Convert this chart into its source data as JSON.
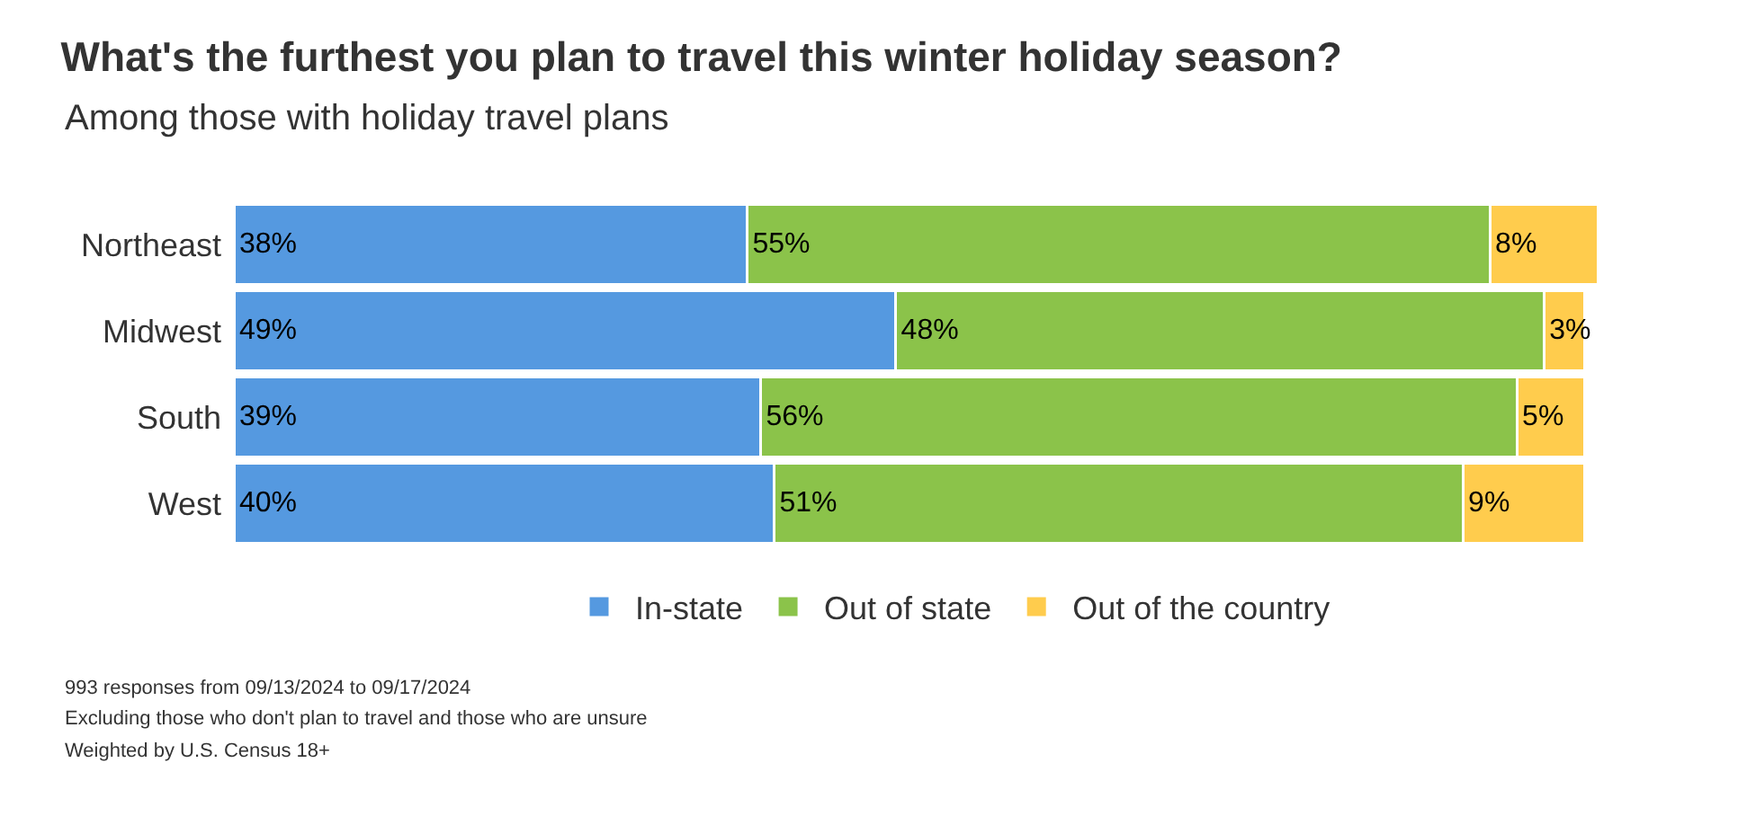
{
  "chart_data": {
    "type": "bar",
    "orientation": "horizontal",
    "stacked": true,
    "title": "What's the furthest you plan to travel this winter holiday season?",
    "subtitle": "Among those with holiday travel plans",
    "categories": [
      "Northeast",
      "Midwest",
      "South",
      "West"
    ],
    "series": [
      {
        "name": "In-state",
        "color": "#5599e0",
        "values": [
          38,
          49,
          39,
          40
        ],
        "value_labels": [
          "38%",
          "49%",
          "39%",
          "40%"
        ]
      },
      {
        "name": "Out of state",
        "color": "#8bc34a",
        "values": [
          55,
          48,
          56,
          51
        ],
        "value_labels": [
          "55%",
          "48%",
          "56%",
          "51%"
        ]
      },
      {
        "name": "Out of the country",
        "color": "#ffcc4d",
        "values": [
          8,
          3,
          5,
          9
        ],
        "value_labels": [
          "8%",
          "3%",
          "5%",
          "9%"
        ]
      }
    ],
    "tick_labels": "y",
    "legend": "bottom",
    "annotations": [
      "993 responses from 09/13/2024 to 09/17/2024",
      "Excluding those who don't plan to travel and those who are unsure",
      "Weighted by U.S. Census 18+"
    ]
  }
}
